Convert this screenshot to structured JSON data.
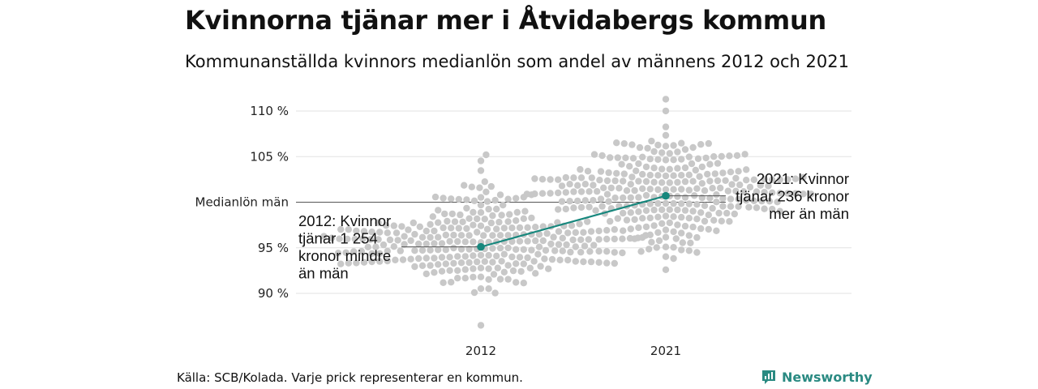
{
  "title": "Kvinnorna tjänar mer i Åtvidabergs kommun",
  "subtitle": "Kommunanställda kvinnors medianlön som andel av männens 2012 och 2021",
  "footer": {
    "source": "Källa: SCB/Kolada. Varje prick representerar en kommun.",
    "brand": "Newsworthy"
  },
  "colors": {
    "dots": "#c8c8c8",
    "highlight": "#17877d",
    "reference_line": "#555555",
    "grid": "#e2e2e2"
  },
  "chart_data": {
    "type": "scatter",
    "subtype": "beeswarm",
    "title": "Kvinnorna tjänar mer i Åtvidabergs kommun",
    "subtitle": "Kommunanställda kvinnors medianlön som andel av männens 2012 och 2021",
    "categories": [
      "2012",
      "2021"
    ],
    "y_ticks": [
      {
        "value": 90,
        "label": "90 %"
      },
      {
        "value": 95,
        "label": "95 %"
      },
      {
        "value": 100,
        "label": "Medianlön män"
      },
      {
        "value": 105,
        "label": "105 %"
      },
      {
        "value": 110,
        "label": "110 %"
      }
    ],
    "ylim": [
      85.5,
      111.8
    ],
    "grid": true,
    "reference_line": {
      "value": 100,
      "label": "Medianlön män"
    },
    "distribution": [
      {
        "category": "2012",
        "count": 290,
        "min": 86.5,
        "max": 105.2,
        "median": 95.6,
        "spread": 2.7
      },
      {
        "category": "2021",
        "count": 290,
        "min": 92.6,
        "max": 111.3,
        "median": 101.4,
        "spread": 2.8
      }
    ],
    "highlight": {
      "name": "Åtvidabergs kommun",
      "points": [
        {
          "category": "2012",
          "value": 95.1
        },
        {
          "category": "2021",
          "value": 100.7
        }
      ]
    },
    "annotations": [
      {
        "category": "2012",
        "lines": [
          "2012: Kvinnor",
          "tjänar 1 254",
          "kronor mindre",
          "än män"
        ]
      },
      {
        "category": "2021",
        "lines": [
          "2021: Kvinnor",
          "tjänar 236 kronor",
          "mer än män"
        ]
      }
    ]
  }
}
